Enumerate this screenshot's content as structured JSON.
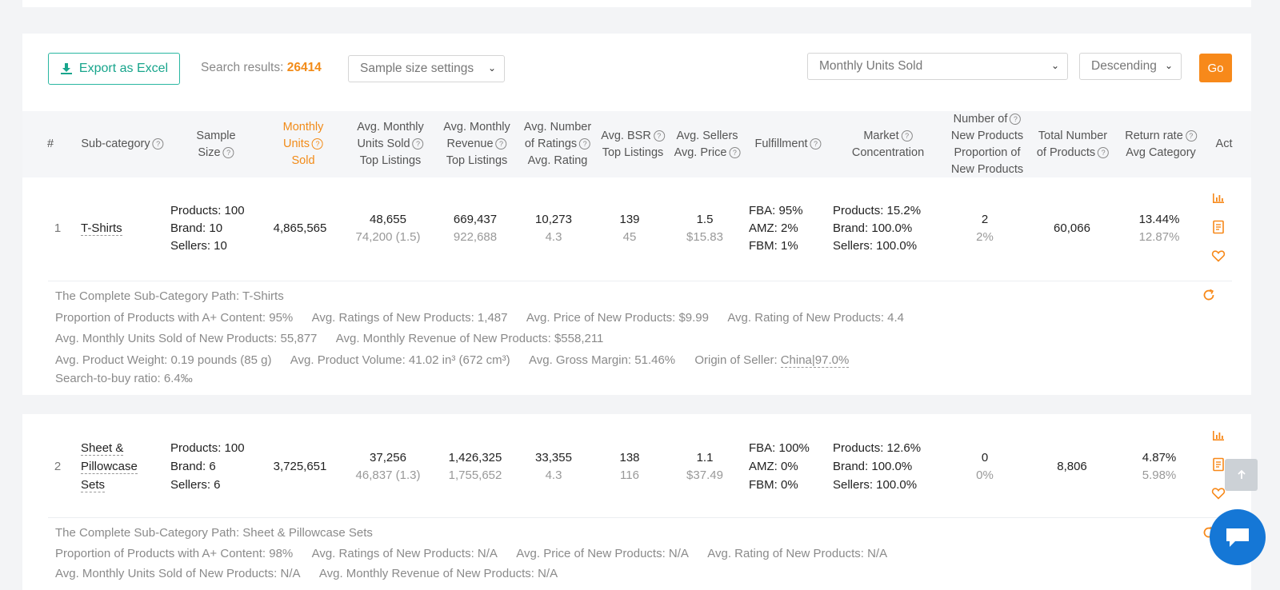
{
  "toolbar": {
    "export_label": "Export as Excel",
    "search_results_label": "Search results:",
    "search_results_count": "26414",
    "sample_select": "Sample size settings",
    "sort_select": "Monthly Units Sold",
    "order_select": "Descending",
    "go_label": "Go"
  },
  "colors": {
    "accent": "#f7891a",
    "export": "#18a58c",
    "chat": "#1577d6"
  },
  "columns": {
    "idx": "#",
    "subcategory": "Sub-category",
    "sample_1": "Sample",
    "sample_2": "Size",
    "monthly_1": "Monthly",
    "monthly_2": "Units",
    "monthly_3": "Sold",
    "avg_units_1": "Avg. Monthly",
    "avg_units_2": "Units Sold",
    "avg_units_3": "Top Listings",
    "avg_rev_1": "Avg. Monthly",
    "avg_rev_2": "Revenue",
    "avg_rev_3": "Top Listings",
    "ratings_1": "Avg. Number",
    "ratings_2": "of Ratings",
    "ratings_3": "Avg. Rating",
    "bsr_1": "Avg. BSR",
    "bsr_2": "Top Listings",
    "sellers_1": "Avg. Sellers",
    "sellers_2": "Avg. Price",
    "fulfillment": "Fulfillment",
    "market_1": "Market",
    "market_2": "Concentration",
    "newprod_1": "Number of",
    "newprod_2": "New Products",
    "newprod_3": "Proportion of",
    "newprod_4": "New Products",
    "total_1": "Total Number",
    "total_2": "of Products",
    "return_1": "Return rate",
    "return_2": "Avg Category",
    "actions": "Act"
  },
  "rows": [
    {
      "index": "1",
      "name_lines": [
        "T-Shirts"
      ],
      "sample": [
        "Products: 100",
        "Brand: 10",
        "Sellers: 10"
      ],
      "monthly_units": "4,865,565",
      "avg_units": "48,655",
      "avg_units_sub": "74,200 (1.5)",
      "avg_revenue": "669,437",
      "avg_revenue_sub": "922,688",
      "ratings": "10,273",
      "rating": "4.3",
      "bsr": "139",
      "bsr_sub": "45",
      "sellers": "1.5",
      "price": "$15.83",
      "fulfillment": [
        "FBA: 95%",
        "AMZ: 2%",
        "FBM: 1%"
      ],
      "market": [
        "Products: 15.2%",
        "Brand: 100.0%",
        "Sellers: 100.0%"
      ],
      "new_products": "2",
      "new_products_pct": "2%",
      "total_products": "60,066",
      "return_rate": "13.44%",
      "return_avg": "12.87%",
      "details": {
        "path": "The Complete Sub-Category Path: T-Shirts",
        "aplus": "Proportion of Products with A+ Content: 95%",
        "new_ratings": "Avg. Ratings of New Products: 1,487",
        "new_price": "Avg. Price of New Products: $9.99",
        "new_rating": "Avg. Rating of New Products: 4.4",
        "new_units": "Avg. Monthly Units Sold of New Products: 55,877",
        "new_revenue": "Avg. Monthly Revenue of New Products: $558,211",
        "weight": "Avg. Product Weight: 0.19 pounds (85 g)",
        "volume": "Avg. Product Volume: 41.02 in³ (672 cm³)",
        "margin": "Avg. Gross Margin: 51.46%",
        "origin_label": "Origin of Seller:",
        "origin_value": "China|97.0%",
        "search_buy": "Search-to-buy ratio: 6.4‰"
      }
    },
    {
      "index": "2",
      "name_lines": [
        "Sheet &",
        "Pillowcase",
        "Sets"
      ],
      "sample": [
        "Products: 100",
        "Brand: 6",
        "Sellers: 6"
      ],
      "monthly_units": "3,725,651",
      "avg_units": "37,256",
      "avg_units_sub": "46,837 (1.3)",
      "avg_revenue": "1,426,325",
      "avg_revenue_sub": "1,755,652",
      "ratings": "33,355",
      "rating": "4.3",
      "bsr": "138",
      "bsr_sub": "116",
      "sellers": "1.1",
      "price": "$37.49",
      "fulfillment": [
        "FBA: 100%",
        "AMZ: 0%",
        "FBM: 0%"
      ],
      "market": [
        "Products: 12.6%",
        "Brand: 100.0%",
        "Sellers: 100.0%"
      ],
      "new_products": "0",
      "new_products_pct": "0%",
      "total_products": "8,806",
      "return_rate": "4.87%",
      "return_avg": "5.98%",
      "details": {
        "path": "The Complete Sub-Category Path: Sheet & Pillowcase Sets",
        "aplus": "Proportion of Products with A+ Content: 98%",
        "new_ratings": "Avg. Ratings of New Products: N/A",
        "new_price": "Avg. Price of New Products: N/A",
        "new_rating": "Avg. Rating of New Products: N/A",
        "new_units": "Avg. Monthly Units Sold of New Products: N/A",
        "new_revenue": "Avg. Monthly Revenue of New Products: N/A"
      }
    }
  ],
  "icons": [
    "download-icon",
    "bar-chart-icon",
    "document-icon",
    "heart-icon",
    "refresh-icon",
    "arrow-up-icon",
    "chat-icon"
  ]
}
